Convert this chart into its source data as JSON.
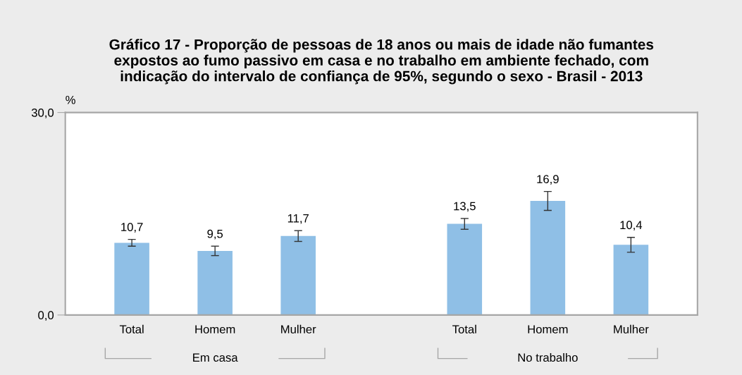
{
  "chart_data": {
    "type": "bar",
    "title": "Gráfico 17 - Proporção de pessoas de 18 anos ou mais de idade não fumantes\nexpostos ao fumo passivo em casa e no trabalho em ambiente fechado, com\nindicação do intervalo de confiança de 95%, segundo o sexo - Brasil - 2013",
    "ylabel": "%",
    "categories": [
      "Total",
      "Homem",
      "Mulher",
      null,
      "Total",
      "Homem",
      "Mulher"
    ],
    "values": [
      10.7,
      9.5,
      11.7,
      null,
      13.5,
      16.9,
      10.4
    ],
    "errors": [
      0.5,
      0.7,
      0.8,
      null,
      0.8,
      1.4,
      1.1
    ],
    "value_labels": [
      "10,7",
      "9,5",
      "11,7",
      null,
      "13,5",
      "16,9",
      "10,4"
    ],
    "color": "#8fbfe6",
    "ylim": [
      0,
      30
    ],
    "yticks": [
      {
        "value": 0,
        "label": "0,0"
      },
      {
        "value": 30,
        "label": "30,0"
      }
    ],
    "annotations": [
      "Em casa",
      "No trabalho"
    ],
    "grid": false,
    "legend": false
  }
}
